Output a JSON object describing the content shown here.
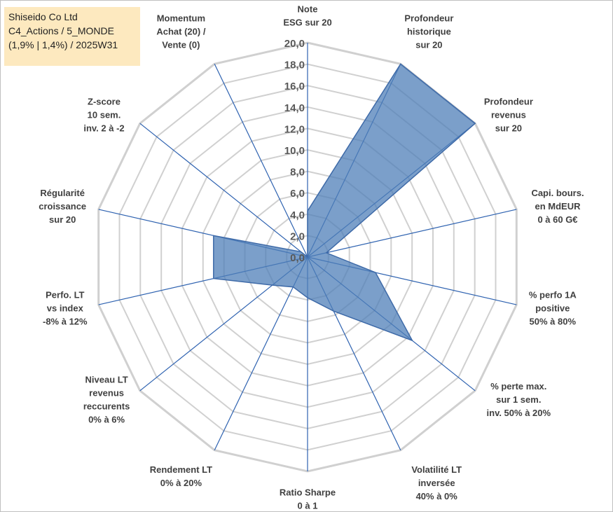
{
  "info": {
    "company": "Shiseido Co Ltd",
    "portfolio": "C4_Actions / 5_MONDE",
    "stats": "(1,9% | 1,4%) / 2025W31"
  },
  "colors": {
    "fill": "#4f7fb8",
    "stroke": "#3e6aa8",
    "grid": "#d0d0d0",
    "spoke": "#2e62b0",
    "info_bg": "#fde9bf"
  },
  "chart_data": {
    "type": "radar",
    "rmin": 0,
    "rmax": 20,
    "tick_step": 2,
    "tick_labels": [
      "0,0",
      "2,0",
      "4,0",
      "6,0",
      "8,0",
      "10,0",
      "12,0",
      "14,0",
      "16,0",
      "18,0",
      "20,0"
    ],
    "grid": true,
    "axes": [
      [
        "Note",
        "ESG sur 20"
      ],
      [
        "Profondeur",
        "historique",
        "sur 20"
      ],
      [
        "Profondeur",
        "revenus",
        "sur 20"
      ],
      [
        "Capi. bours.",
        "en MdEUR",
        "0 à 60 G€"
      ],
      [
        "% perfo 1A",
        "positive",
        "50% à 80%"
      ],
      [
        "% perte max.",
        "sur 1 sem.",
        "inv. 50% à 20%"
      ],
      [
        "Volatilité LT",
        "inversée",
        "40% à 0%"
      ],
      [
        "Ratio Sharpe",
        "0 à 1"
      ],
      [
        "Rendement LT",
        "0% à 20%"
      ],
      [
        "Niveau LT",
        "revenus",
        "reccurents",
        "0% à 6%"
      ],
      [
        "Perfo. LT",
        "vs index",
        "-8% à 12%"
      ],
      [
        "Régularité",
        "croissance",
        "sur 20"
      ],
      [
        "Z-score",
        "10 sem.",
        "inv. 2 à -2"
      ],
      [
        "Momentum",
        "Achat (20) /",
        "Vente (0)"
      ]
    ],
    "values": [
      4.3,
      20,
      20,
      1.8,
      6.5,
      12.5,
      5.6,
      3.8,
      3.1,
      4.2,
      9.0,
      9.0,
      0.8,
      0.0
    ]
  }
}
